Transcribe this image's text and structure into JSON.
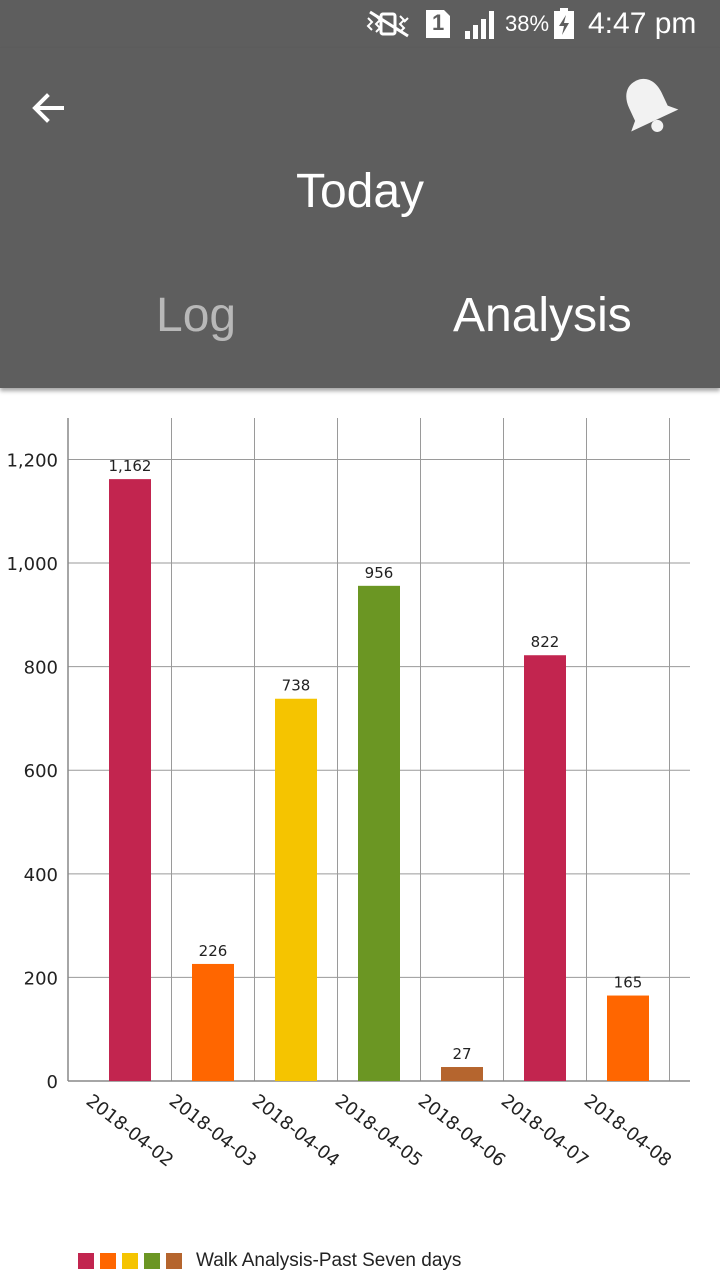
{
  "status_bar": {
    "battery_percent": "38%",
    "sim_slot": "1",
    "time": "4:47 pm",
    "icons": [
      "mute-vibrate-icon",
      "sim-icon",
      "signal-icon",
      "battery-charging-icon"
    ]
  },
  "header": {
    "title": "Today",
    "back_icon": "arrow-left-icon",
    "notification_icon": "bell-icon"
  },
  "tabs": [
    {
      "label": "Log",
      "active": false
    },
    {
      "label": "Analysis",
      "active": true
    }
  ],
  "colors": {
    "appbar": "#5e5e5e",
    "series": [
      "#c2254f",
      "#ff6600",
      "#f5c400",
      "#6b9623",
      "#b5652e",
      "#c2254f",
      "#ff6600"
    ]
  },
  "chart_data": {
    "type": "bar",
    "categories": [
      "2018-04-02",
      "2018-04-03",
      "2018-04-04",
      "2018-04-05",
      "2018-04-06",
      "2018-04-07",
      "2018-04-08"
    ],
    "values": [
      1162,
      226,
      738,
      956,
      27,
      822,
      165
    ],
    "value_labels": [
      "1,162",
      "226",
      "738",
      "956",
      "27",
      "822",
      "165"
    ],
    "yticks": [
      0,
      200,
      400,
      600,
      800,
      1000,
      1200
    ],
    "ytick_labels": [
      "0",
      "200",
      "400",
      "600",
      "800",
      "1,000",
      "1,200"
    ],
    "ylim": [
      0,
      1280
    ],
    "grid": true,
    "legend": {
      "label": "Walk Analysis-Past Seven days",
      "position": "bottom-left"
    }
  }
}
